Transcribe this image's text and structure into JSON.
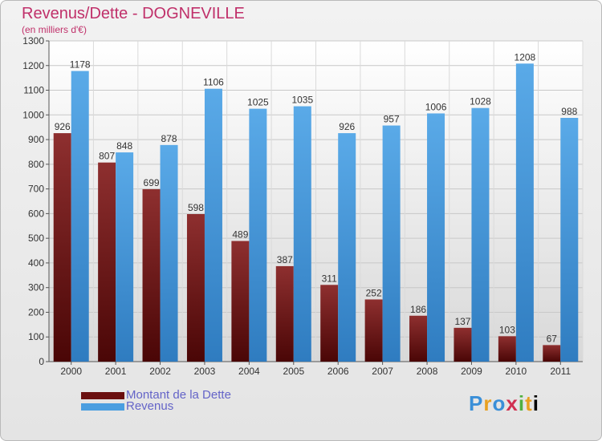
{
  "chart_data": {
    "type": "bar",
    "title": "Revenus/Dette - DOGNEVILLE",
    "subtitle": "(en milliers d'€)",
    "categories": [
      "2000",
      "2001",
      "2002",
      "2003",
      "2004",
      "2005",
      "2006",
      "2007",
      "2008",
      "2009",
      "2010",
      "2011"
    ],
    "series": [
      {
        "name": "Montant de la Dette",
        "color": "#7a1a1a",
        "values": [
          926,
          807,
          699,
          598,
          489,
          387,
          311,
          252,
          186,
          137,
          103,
          67
        ]
      },
      {
        "name": "Revenus",
        "color": "#4a9ee0",
        "values": [
          1178,
          848,
          878,
          1106,
          1025,
          1035,
          926,
          957,
          1006,
          1028,
          1208,
          988
        ]
      }
    ],
    "ylim": [
      0,
      1300
    ],
    "yticks": [
      0,
      100,
      200,
      300,
      400,
      500,
      600,
      700,
      800,
      900,
      1000,
      1100,
      1200,
      1300
    ],
    "grid": true,
    "legend_position": "bottom-left"
  },
  "logo": {
    "letters": [
      "P",
      "r",
      "o",
      "x",
      "i",
      "t",
      "i"
    ]
  }
}
